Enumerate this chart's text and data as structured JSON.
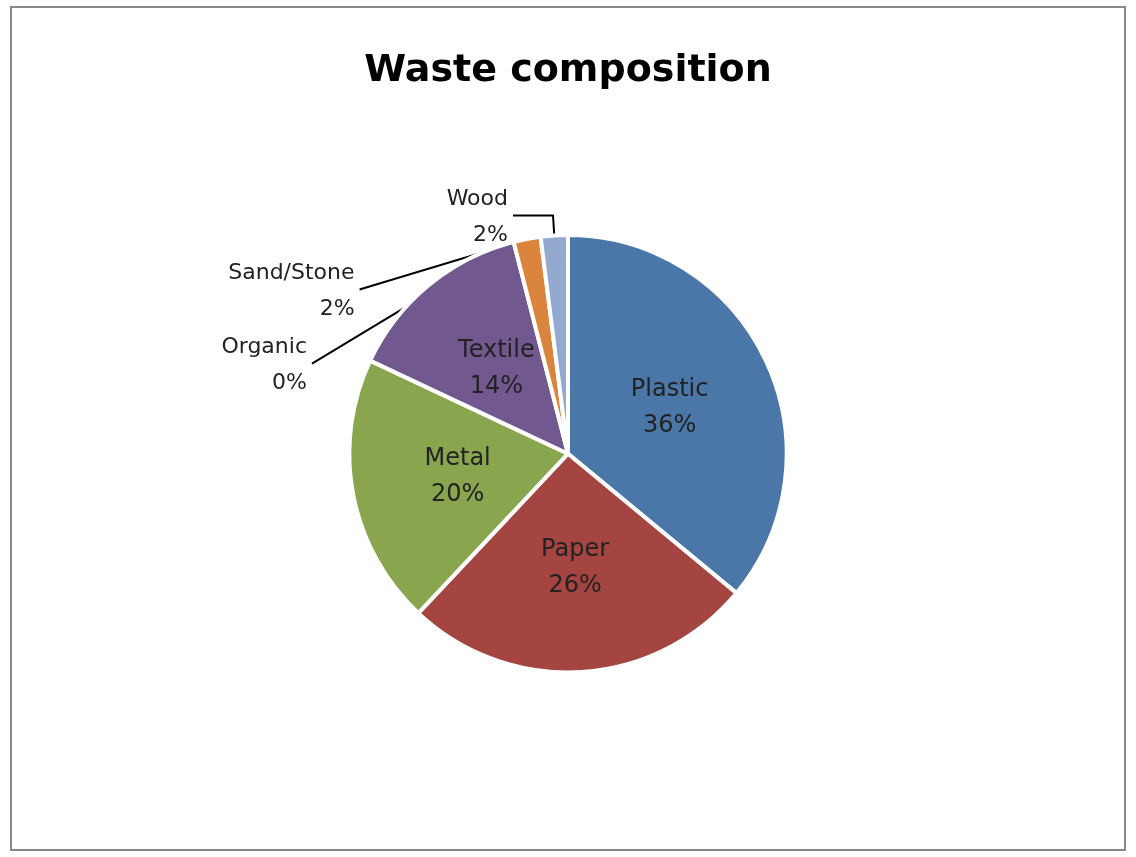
{
  "chart_data": {
    "type": "pie",
    "title": "Waste composition",
    "categories": [
      "Plastic",
      "Paper",
      "Metal",
      "Textile",
      "Organic",
      "Sand/Stone",
      "Wood"
    ],
    "values": [
      36,
      26,
      20,
      14,
      0,
      2,
      2
    ],
    "colors": [
      "#4a76a8",
      "#a54542",
      "#89a54e",
      "#71588f",
      "#4198af",
      "#db843d",
      "#93a9cf"
    ],
    "value_labels": [
      "36%",
      "26%",
      "20%",
      "14%",
      "0%",
      "2%",
      "2%"
    ],
    "legend": false
  }
}
